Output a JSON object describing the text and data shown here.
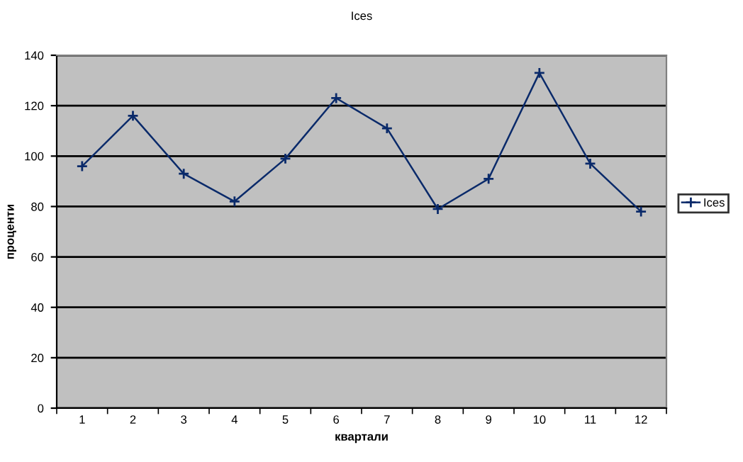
{
  "chart_data": {
    "type": "line",
    "title": "Ices",
    "xlabel": "квартали",
    "ylabel": "проценти",
    "categories": [
      "1",
      "2",
      "3",
      "4",
      "5",
      "6",
      "7",
      "8",
      "9",
      "10",
      "11",
      "12"
    ],
    "series": [
      {
        "name": "Ices",
        "color": "#0a2a6a",
        "values": [
          96,
          116,
          93,
          82,
          99,
          123,
          111,
          79,
          91,
          133,
          97,
          78
        ]
      }
    ],
    "ylim": [
      0,
      140
    ],
    "yticks": [
      0,
      20,
      40,
      60,
      80,
      100,
      120,
      140
    ],
    "grid": "y",
    "legend": "right",
    "marker": "cross",
    "line_style": "solid"
  }
}
